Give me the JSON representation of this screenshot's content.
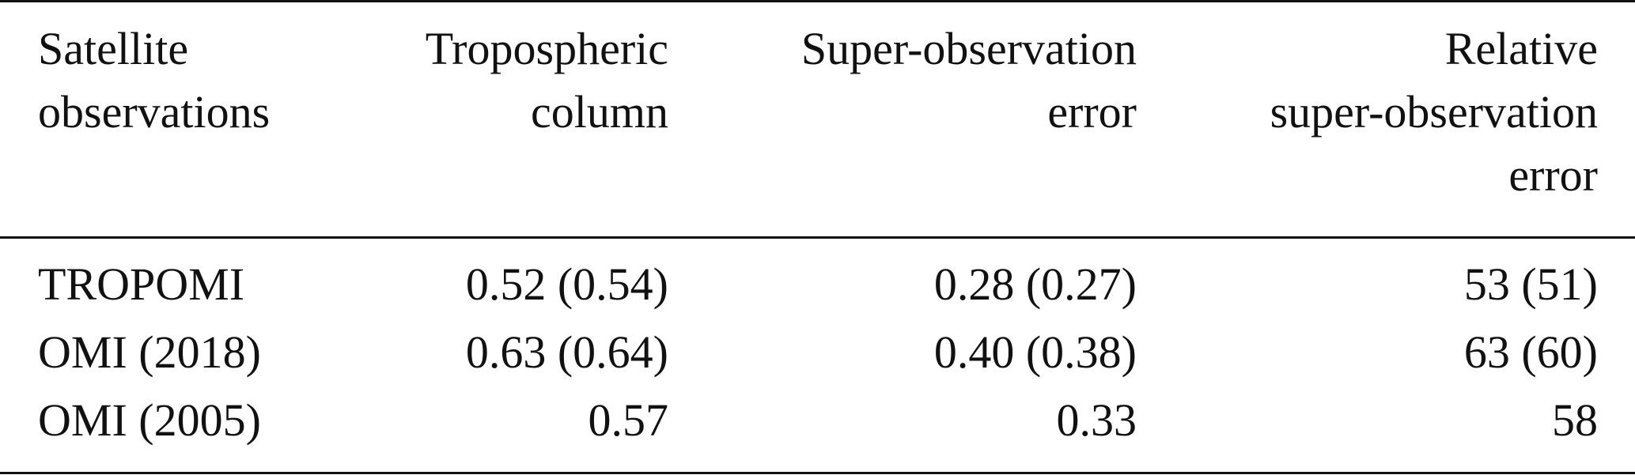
{
  "table": {
    "headers": [
      {
        "lines": [
          "Satellite",
          "observations"
        ]
      },
      {
        "lines": [
          "Tropospheric",
          "column"
        ]
      },
      {
        "lines": [
          "Super-observation",
          "error"
        ]
      },
      {
        "lines": [
          "Relative",
          "super-observation",
          "error"
        ]
      }
    ],
    "rows": [
      {
        "cells": [
          "TROPOMI",
          "0.52 (0.54)",
          "0.28 (0.27)",
          "53 (51)"
        ]
      },
      {
        "cells": [
          "OMI (2018)",
          "0.63 (0.64)",
          "0.40 (0.38)",
          "63 (60)"
        ]
      },
      {
        "cells": [
          "OMI (2005)",
          "0.57",
          "0.33",
          "58"
        ]
      }
    ]
  }
}
